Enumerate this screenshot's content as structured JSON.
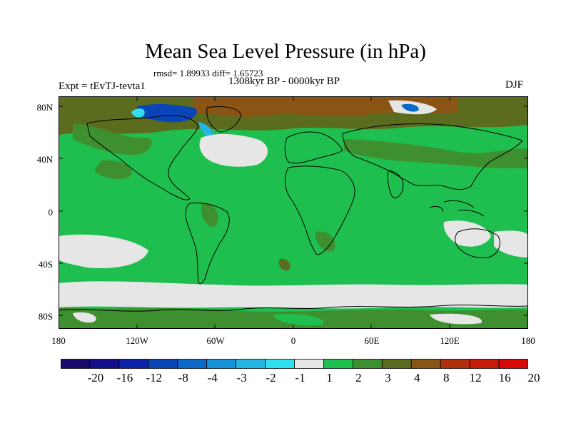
{
  "title": "Mean Sea Level Pressure (in hPa)",
  "stats": "rmsd= 1.89933 diff= 1.65723",
  "period": "1308kyr BP - 0000kyr BP",
  "experiment": "Expt = tEvTJ-tevta1",
  "season": "DJF",
  "axes": {
    "lat_labels": [
      "80N",
      "40N",
      "0",
      "40S",
      "80S"
    ],
    "lon_labels": [
      "180",
      "120W",
      "60W",
      "0",
      "60E",
      "120E",
      "180"
    ]
  },
  "colorbar": {
    "labels": [
      "-20",
      "-16",
      "-12",
      "-8",
      "-4",
      "-3",
      "-2",
      "-1",
      "1",
      "2",
      "3",
      "4",
      "8",
      "12",
      "16",
      "20"
    ],
    "colors": [
      "#1a0a6b",
      "#140e8f",
      "#0b23a8",
      "#0a45b8",
      "#0a69c9",
      "#1592d8",
      "#22b6e4",
      "#2ee0ef",
      "#e6e6e6",
      "#1fbf4f",
      "#3e8f2f",
      "#5b6c1f",
      "#8a5414",
      "#b0300c",
      "#c81a0a",
      "#d90808"
    ]
  },
  "palette": {
    "positive_low": "#1fbf4f",
    "positive_mid": "#3e8f2f",
    "positive_high": "#5b6c1f",
    "neutral": "#e6e6e6",
    "negative": "#0a45b8",
    "strong_positive": "#8a5414"
  }
}
